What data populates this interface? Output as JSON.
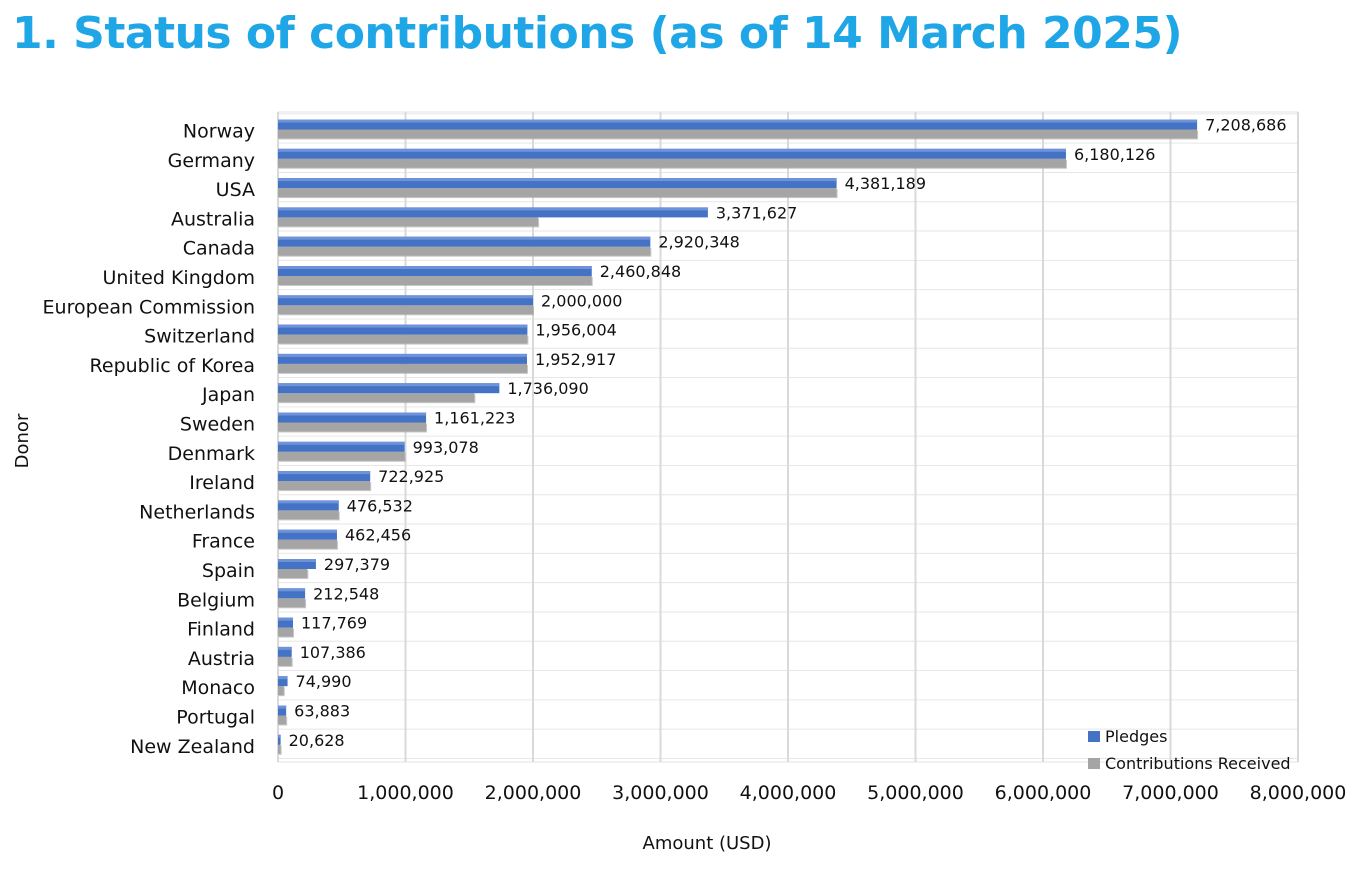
{
  "title": "1. Status of contributions (as of 14 March 2025)",
  "chart_data": {
    "type": "bar",
    "orientation": "horizontal",
    "title": "1. Status of contributions (as of 14 March 2025)",
    "xlabel": "Amount (USD)",
    "ylabel": "Donor",
    "xlim": [
      0,
      8000000
    ],
    "xticks": [
      "0",
      "1,000,000",
      "2,000,000",
      "3,000,000",
      "4,000,000",
      "5,000,000",
      "6,000,000",
      "7,000,000",
      "8,000,000"
    ],
    "grid": true,
    "legend": "bottom-right",
    "categories": [
      "Norway",
      "Germany",
      "USA",
      "Australia",
      "Canada",
      "United Kingdom",
      "European Commission",
      "Switzerland",
      "Republic of Korea",
      "Japan",
      "Sweden",
      "Denmark",
      "Ireland",
      "Netherlands",
      "France",
      "Spain",
      "Belgium",
      "Finland",
      "Austria",
      "Monaco",
      "Portugal",
      "New Zealand"
    ],
    "series": [
      {
        "name": "Pledges",
        "color": "#4472c4",
        "values": [
          7208686,
          6180126,
          4381189,
          3371627,
          2920348,
          2460848,
          2000000,
          1956004,
          1952917,
          1736090,
          1161223,
          993078,
          722925,
          476532,
          462456,
          297379,
          212548,
          117769,
          107386,
          74990,
          63883,
          20628
        ],
        "labels": [
          "7,208,686",
          "6,180,126",
          "4,381,189",
          "3,371,627",
          "2,920,348",
          "2,460,848",
          "2,000,000",
          "1,956,004",
          "1,952,917",
          "1,736,090",
          "1,161,223",
          "993,078",
          "722,925",
          "476,532",
          "462,456",
          "297,379",
          "212,548",
          "117,769",
          "107,386",
          "74,990",
          "63,883",
          "20,628"
        ]
      },
      {
        "name": "Contributions Received",
        "color": "#a5a5a5",
        "values": [
          7208686,
          6180126,
          4381189,
          2040000,
          2920348,
          2460848,
          2000000,
          1956004,
          1952917,
          1540000,
          1161223,
          993078,
          722925,
          476532,
          462456,
          230000,
          212548,
          117769,
          107386,
          45000,
          63883,
          20628
        ]
      }
    ]
  }
}
